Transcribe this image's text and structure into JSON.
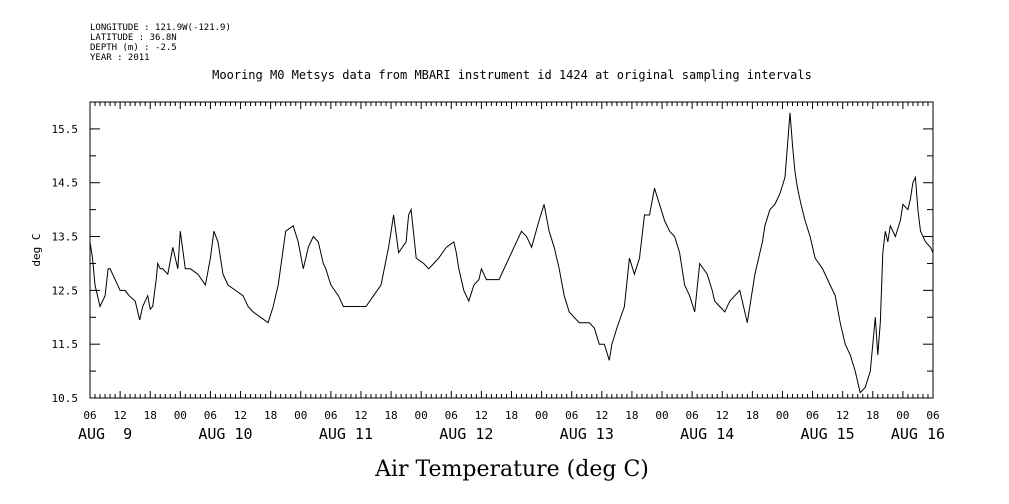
{
  "header": {
    "lines": [
      "LONGITUDE : 121.9W(-121.9)",
      "LATITUDE : 36.8N",
      "DEPTH (m) : -2.5",
      "YEAR : 2011"
    ]
  },
  "chart_data": {
    "type": "line",
    "title": "Mooring M0 Metsys data from MBARI instrument id 1424 at original sampling intervals",
    "xlabel": "Air Temperature (deg C)",
    "ylabel": "deg C",
    "ylim": [
      10.5,
      16.0
    ],
    "ytick_values": [
      10.5,
      11.5,
      12.5,
      13.5,
      14.5,
      15.5
    ],
    "ytick_labels": [
      "10.5",
      "11.5",
      "12.5",
      "13.5",
      "14.5",
      "15.5"
    ],
    "x_unit": "hours since 2011-08-09 00:00",
    "xlim": [
      6,
      174
    ],
    "hour_ticks": {
      "values": [
        6,
        12,
        18,
        24,
        30,
        36,
        42,
        48,
        54,
        60,
        66,
        72,
        78,
        84,
        90,
        96,
        102,
        108,
        114,
        120,
        126,
        132,
        138,
        144,
        150,
        156,
        162,
        168,
        174
      ],
      "labels": [
        "06",
        "12",
        "18",
        "00",
        "06",
        "12",
        "18",
        "00",
        "06",
        "12",
        "18",
        "00",
        "06",
        "12",
        "18",
        "00",
        "06",
        "12",
        "18",
        "00",
        "06",
        "12",
        "18",
        "00",
        "06",
        "12",
        "18",
        "00",
        "06"
      ]
    },
    "day_labels": [
      {
        "label": "AUG  9",
        "hour": 9
      },
      {
        "label": "AUG 10",
        "hour": 33
      },
      {
        "label": "AUG 11",
        "hour": 57
      },
      {
        "label": "AUG 12",
        "hour": 81
      },
      {
        "label": "AUG 13",
        "hour": 105
      },
      {
        "label": "AUG 14",
        "hour": 129
      },
      {
        "label": "AUG 15",
        "hour": 153
      },
      {
        "label": "AUG 16",
        "hour": 171
      }
    ],
    "grid": false,
    "series": [
      {
        "name": "",
        "x": [
          6.0,
          6.5,
          7.0,
          8.0,
          9.0,
          9.6,
          10.0,
          11.0,
          12.0,
          13.0,
          13.8,
          15.0,
          15.9,
          16.5,
          17.5,
          18.0,
          18.5,
          19.2,
          19.5,
          20.0,
          20.5,
          21.5,
          22.5,
          23.5,
          24.0,
          25.0,
          26.0,
          27.5,
          29.0,
          30.0,
          30.7,
          31.5,
          32.5,
          33.5,
          35.0,
          36.5,
          37.5,
          38.5,
          40.0,
          41.5,
          42.5,
          43.5,
          45.0,
          46.5,
          47.5,
          48.5,
          49.5,
          50.5,
          51.5,
          52.5,
          53.0,
          54.0,
          55.5,
          56.5,
          58.0,
          59.5,
          61.0,
          62.5,
          64.0,
          65.5,
          66.5,
          67.5,
          69.0,
          69.5,
          70.0,
          71.0,
          72.5,
          73.5,
          74.5,
          75.5,
          77.0,
          78.5,
          79.0,
          79.5,
          80.5,
          81.5,
          82.5,
          83.5,
          84.0,
          85.0,
          86.0,
          87.5,
          89.0,
          90.5,
          92.0,
          93.0,
          94.0,
          95.5,
          96.5,
          97.5,
          98.5,
          99.5,
          100.5,
          101.5,
          102.5,
          103.5,
          104.5,
          105.5,
          106.5,
          107.5,
          108.5,
          109.5,
          110.0,
          111.0,
          112.5,
          113.5,
          114.5,
          115.5,
          116.5,
          117.5,
          118.5,
          119.5,
          120.5,
          121.5,
          122.5,
          123.5,
          124.5,
          125.5,
          126.5,
          127.5,
          129.0,
          130.0,
          130.5,
          131.5,
          132.5,
          133.5,
          134.5,
          135.5,
          137.0,
          138.5,
          140.0,
          140.5,
          141.5,
          142.5,
          143.5,
          144.5,
          145.5,
          146.0,
          146.5,
          147.0,
          147.7,
          148.5,
          149.5,
          150.5,
          152.0,
          153.5,
          154.5,
          155.5,
          156.5,
          157.5,
          158.5,
          159.5,
          160.5,
          161.5,
          162.0,
          162.5,
          163.0,
          163.5,
          164.0,
          164.5,
          165.0,
          165.5,
          166.5,
          167.5,
          168.0,
          169.0,
          169.5,
          170.0,
          170.5,
          171.0,
          171.5,
          172.5,
          173.5,
          174.0
        ],
        "y": [
          13.4,
          13.1,
          12.6,
          12.2,
          12.4,
          12.9,
          12.9,
          12.7,
          12.5,
          12.5,
          12.4,
          12.3,
          11.95,
          12.2,
          12.4,
          12.15,
          12.2,
          12.7,
          13.0,
          12.9,
          12.9,
          12.8,
          13.3,
          12.9,
          13.6,
          12.9,
          12.9,
          12.8,
          12.6,
          13.1,
          13.6,
          13.4,
          12.8,
          12.6,
          12.5,
          12.4,
          12.2,
          12.1,
          12.0,
          11.9,
          12.2,
          12.6,
          13.6,
          13.7,
          13.4,
          12.9,
          13.3,
          13.5,
          13.4,
          13.0,
          12.9,
          12.6,
          12.4,
          12.2,
          12.2,
          12.2,
          12.2,
          12.4,
          12.6,
          13.3,
          13.9,
          13.2,
          13.4,
          13.9,
          14.0,
          13.1,
          13.0,
          12.9,
          13.0,
          13.1,
          13.3,
          13.4,
          13.2,
          12.9,
          12.5,
          12.3,
          12.6,
          12.7,
          12.9,
          12.7,
          12.7,
          12.7,
          13.0,
          13.3,
          13.6,
          13.5,
          13.3,
          13.8,
          14.1,
          13.6,
          13.3,
          12.9,
          12.4,
          12.1,
          12.0,
          11.9,
          11.9,
          11.9,
          11.8,
          11.5,
          11.5,
          11.2,
          11.5,
          11.8,
          12.2,
          13.1,
          12.8,
          13.1,
          13.9,
          13.9,
          14.4,
          14.1,
          13.8,
          13.6,
          13.5,
          13.2,
          12.6,
          12.4,
          12.1,
          13.0,
          12.8,
          12.5,
          12.3,
          12.2,
          12.1,
          12.3,
          12.4,
          12.5,
          11.9,
          12.8,
          13.4,
          13.7,
          14.0,
          14.1,
          14.3,
          14.6,
          15.8,
          15.2,
          14.7,
          14.4,
          14.1,
          13.8,
          13.5,
          13.1,
          12.9,
          12.6,
          12.4,
          11.9,
          11.5,
          11.3,
          11.0,
          10.6,
          10.7,
          11.0,
          11.5,
          12.0,
          11.3,
          11.9,
          13.2,
          13.6,
          13.4,
          13.7,
          13.5,
          13.8,
          14.1,
          14.0,
          14.2,
          14.5,
          14.6,
          14.0,
          13.6,
          13.4,
          13.3,
          13.2
        ]
      }
    ]
  }
}
